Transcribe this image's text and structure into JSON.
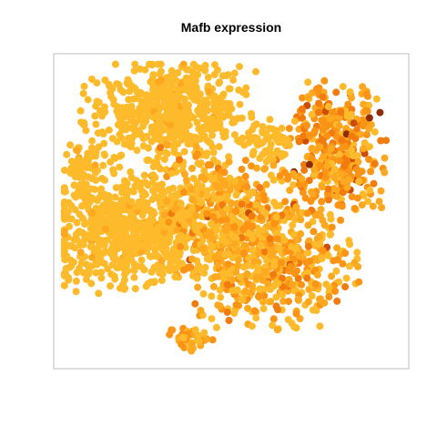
{
  "chart_data": {
    "type": "scatter",
    "title": "Mafb expression",
    "xlabel": "",
    "ylabel": "",
    "axes_visible": false,
    "grid": false,
    "legend": "none",
    "colors": {
      "low": "#fdbb2c",
      "mid_low": "#fda81f",
      "mid": "#fb9414",
      "mid_high": "#f27b0f",
      "high": "#cc4d06",
      "max": "#8c2d04",
      "frame": "#bdbdbd"
    },
    "clusters": [
      {
        "name": "",
        "center": [
          0.31,
          0.84
        ],
        "spread": [
          0.12,
          0.08
        ],
        "count": 550,
        "level": "low"
      },
      {
        "name": "",
        "center": [
          0.13,
          0.42
        ],
        "spread": [
          0.1,
          0.09
        ],
        "count": 380,
        "level": "low"
      },
      {
        "name": "",
        "center": [
          0.3,
          0.47
        ],
        "spread": [
          0.1,
          0.11
        ],
        "count": 420,
        "level": "low"
      },
      {
        "name": "",
        "center": [
          0.5,
          0.5
        ],
        "spread": [
          0.1,
          0.1
        ],
        "count": 300,
        "level": "mixed"
      },
      {
        "name": "",
        "center": [
          0.62,
          0.32
        ],
        "spread": [
          0.12,
          0.1
        ],
        "count": 500,
        "level": "mixed"
      },
      {
        "name": "",
        "center": [
          0.81,
          0.71
        ],
        "spread": [
          0.07,
          0.11
        ],
        "count": 380,
        "level": "high"
      },
      {
        "name": "",
        "center": [
          0.38,
          0.07
        ],
        "spread": [
          0.03,
          0.02
        ],
        "count": 40,
        "level": "mixed"
      },
      {
        "name": "",
        "center": [
          0.06,
          0.65
        ],
        "spread": [
          0.03,
          0.05
        ],
        "count": 70,
        "level": "low"
      },
      {
        "name": "",
        "center": [
          0.62,
          0.73
        ],
        "spread": [
          0.04,
          0.04
        ],
        "count": 60,
        "level": "low"
      }
    ]
  }
}
